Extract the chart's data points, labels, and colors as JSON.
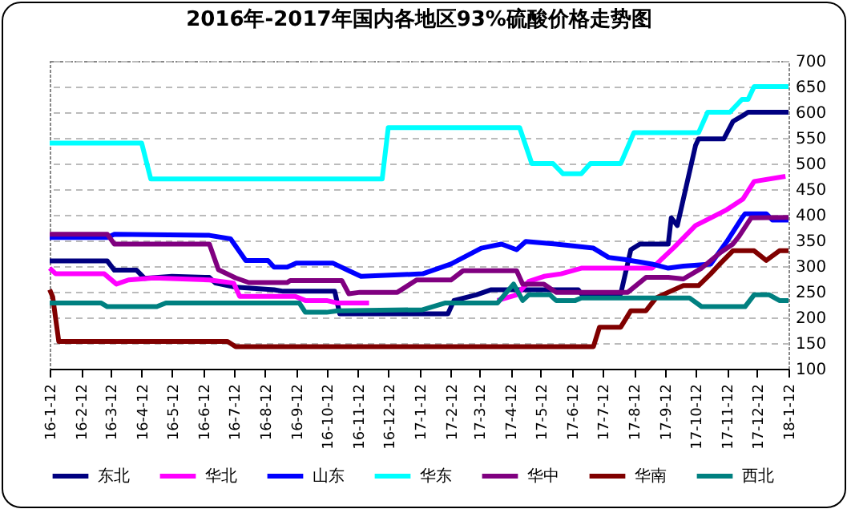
{
  "chart_data": {
    "type": "line",
    "title": "2016年-2017年国内各地区93%硫酸价格走势图",
    "xlim": [
      "2016-01-12",
      "2018-01-12"
    ],
    "xticks": [
      {
        "value": "2016-01-12",
        "label": "16-1-12"
      },
      {
        "value": "2016-02-12",
        "label": "16-2-12"
      },
      {
        "value": "2016-03-12",
        "label": "16-3-12"
      },
      {
        "value": "2016-04-12",
        "label": "16-4-12"
      },
      {
        "value": "2016-05-12",
        "label": "16-5-12"
      },
      {
        "value": "2016-06-12",
        "label": "16-6-12"
      },
      {
        "value": "2016-07-12",
        "label": "16-7-12"
      },
      {
        "value": "2016-08-12",
        "label": "16-8-12"
      },
      {
        "value": "2016-09-12",
        "label": "16-9-12"
      },
      {
        "value": "2016-10-12",
        "label": "16-10-12"
      },
      {
        "value": "2016-11-12",
        "label": "16-11-12"
      },
      {
        "value": "2016-12-12",
        "label": "16-12-12"
      },
      {
        "value": "2017-01-12",
        "label": "17-1-12"
      },
      {
        "value": "2017-02-12",
        "label": "17-2-12"
      },
      {
        "value": "2017-03-12",
        "label": "17-3-12"
      },
      {
        "value": "2017-04-12",
        "label": "17-4-12"
      },
      {
        "value": "2017-05-12",
        "label": "17-5-12"
      },
      {
        "value": "2017-06-12",
        "label": "17-6-12"
      },
      {
        "value": "2017-07-12",
        "label": "17-7-12"
      },
      {
        "value": "2017-08-12",
        "label": "17-8-12"
      },
      {
        "value": "2017-09-12",
        "label": "17-9-12"
      },
      {
        "value": "2017-10-12",
        "label": "17-10-12"
      },
      {
        "value": "2017-11-12",
        "label": "17-11-12"
      },
      {
        "value": "2017-12-12",
        "label": "17-12-12"
      },
      {
        "value": "2018-01-12",
        "label": "18-1-12"
      }
    ],
    "ylim": [
      100,
      700
    ],
    "yticks": [
      100,
      150,
      200,
      250,
      300,
      350,
      400,
      450,
      500,
      550,
      600,
      650,
      700
    ],
    "grid": "y",
    "legend": "bottom",
    "series": [
      {
        "name": "东北",
        "color": "#000080",
        "x": [
          "2016-01-12",
          "2016-03-09",
          "2016-03-16",
          "2016-04-07",
          "2016-04-15",
          "2016-05-12",
          "2016-06-18",
          "2016-06-24",
          "2016-07-14",
          "2016-08-21",
          "2016-08-30",
          "2016-10-20",
          "2016-10-25",
          "2017-02-09",
          "2017-02-15",
          "2017-03-09",
          "2017-03-24",
          "2017-06-18",
          "2017-06-21",
          "2017-07-30",
          "2017-08-09",
          "2017-08-18",
          "2017-09-15",
          "2017-09-18",
          "2017-09-24",
          "2017-10-12",
          "2017-10-15",
          "2017-11-09",
          "2017-11-18",
          "2017-11-30",
          "2017-12-03",
          "2018-01-12"
        ],
        "values": [
          310,
          310,
          292,
          292,
          276,
          280,
          278,
          267,
          259,
          254,
          251,
          251,
          207,
          207,
          233,
          244,
          254,
          254,
          246,
          246,
          332,
          343,
          343,
          394,
          379,
          535,
          548,
          548,
          582,
          596,
          600,
          600
        ]
      },
      {
        "name": "华北",
        "color": "#ff00ff",
        "x": [
          "2016-01-12",
          "2016-01-18",
          "2016-03-06",
          "2016-03-18",
          "2016-03-30",
          "2016-04-24",
          "2016-06-18",
          "2016-07-12",
          "2016-07-18",
          "2016-09-11",
          "2016-09-21",
          "2016-10-12",
          "2016-10-23",
          "2016-11-23",
          "2017-01-12",
          "2017-03-30",
          "2017-04-18",
          "2017-04-30",
          "2017-05-15",
          "2017-06-01",
          "2017-06-21",
          "2017-08-30",
          "2017-09-21",
          "2017-10-12",
          "2017-10-27",
          "2017-11-12",
          "2017-11-28",
          "2017-12-09",
          "2018-01-09"
        ],
        "values": [
          296,
          285,
          285,
          265,
          273,
          277,
          273,
          267,
          241,
          241,
          233,
          233,
          228,
          228,
          null,
          233,
          244,
          270,
          280,
          285,
          296,
          296,
          337,
          379,
          394,
          410,
          431,
          465,
          475
        ]
      },
      {
        "name": "山东",
        "color": "#0000ff",
        "x": [
          "2016-01-12",
          "2016-03-09",
          "2016-03-16",
          "2016-06-18",
          "2016-07-09",
          "2016-07-24",
          "2016-08-15",
          "2016-08-21",
          "2016-09-03",
          "2016-09-12",
          "2016-10-18",
          "2016-11-03",
          "2016-11-15",
          "2017-01-15",
          "2017-02-12",
          "2017-03-14",
          "2017-04-03",
          "2017-04-18",
          "2017-04-27",
          "2017-05-27",
          "2017-07-03",
          "2017-07-18",
          "2017-08-03",
          "2017-08-30",
          "2017-09-15",
          "2017-09-30",
          "2017-10-27",
          "2017-11-12",
          "2017-11-27",
          "2017-11-30",
          "2017-12-21",
          "2017-12-27",
          "2018-01-12"
        ],
        "values": [
          356,
          356,
          362,
          360,
          353,
          311,
          311,
          298,
          298,
          306,
          306,
          291,
          280,
          285,
          304,
          335,
          343,
          332,
          348,
          343,
          335,
          317,
          313,
          304,
          296,
          300,
          304,
          348,
          394,
          402,
          402,
          390,
          390
        ]
      },
      {
        "name": "华东",
        "color": "#00ffff",
        "x": [
          "2016-01-12",
          "2016-04-12",
          "2016-04-21",
          "2016-12-06",
          "2016-12-12",
          "2017-04-21",
          "2017-05-03",
          "2017-05-24",
          "2017-06-03",
          "2017-06-21",
          "2017-06-30",
          "2017-07-30",
          "2017-08-12",
          "2017-10-15",
          "2017-10-24",
          "2017-11-15",
          "2017-11-27",
          "2017-12-03",
          "2017-12-09",
          "2018-01-12"
        ],
        "values": [
          540,
          540,
          470,
          470,
          570,
          570,
          500,
          500,
          480,
          480,
          500,
          500,
          560,
          560,
          600,
          600,
          625,
          625,
          650,
          650
        ]
      },
      {
        "name": "华中",
        "color": "#800080",
        "x": [
          "2016-01-12",
          "2016-03-09",
          "2016-03-16",
          "2016-06-18",
          "2016-06-27",
          "2016-07-14",
          "2016-07-27",
          "2016-09-03",
          "2016-09-06",
          "2016-10-27",
          "2016-11-03",
          "2016-11-14",
          "2016-12-21",
          "2017-01-09",
          "2017-02-12",
          "2017-02-24",
          "2017-04-18",
          "2017-04-24",
          "2017-05-15",
          "2017-05-27",
          "2017-08-06",
          "2017-08-24",
          "2017-09-15",
          "2017-09-30",
          "2017-10-18",
          "2017-11-06",
          "2017-11-18",
          "2017-11-24",
          "2017-12-06",
          "2018-01-12"
        ],
        "values": [
          362,
          362,
          343,
          343,
          293,
          277,
          268,
          268,
          272,
          272,
          246,
          249,
          249,
          273,
          273,
          291,
          291,
          265,
          265,
          249,
          249,
          278,
          278,
          275,
          296,
          327,
          343,
          358,
          394,
          395
        ]
      },
      {
        "name": "华南",
        "color": "#800000",
        "x": [
          "2016-01-12",
          "2016-01-15",
          "2016-01-21",
          "2016-07-06",
          "2016-07-14",
          "2017-07-03",
          "2017-07-09",
          "2017-07-30",
          "2017-08-09",
          "2017-08-24",
          "2017-09-03",
          "2017-09-15",
          "2017-09-30",
          "2017-10-15",
          "2017-10-27",
          "2017-11-06",
          "2017-11-18",
          "2017-12-09",
          "2017-12-21",
          "2018-01-03",
          "2018-01-12"
        ],
        "values": [
          254,
          240,
          153,
          153,
          143,
          143,
          181,
          181,
          213,
          213,
          238,
          249,
          262,
          262,
          285,
          306,
          330,
          330,
          311,
          330,
          330
        ]
      },
      {
        "name": "西北",
        "color": "#008080",
        "x": [
          "2016-01-12",
          "2016-03-03",
          "2016-03-09",
          "2016-04-27",
          "2016-05-06",
          "2016-09-15",
          "2016-09-21",
          "2016-10-12",
          "2016-10-23",
          "2017-01-15",
          "2017-02-06",
          "2017-03-30",
          "2017-04-15",
          "2017-04-24",
          "2017-04-30",
          "2017-05-21",
          "2017-05-27",
          "2017-06-15",
          "2017-06-21",
          "2017-10-06",
          "2017-10-18",
          "2017-11-30",
          "2017-12-09",
          "2017-12-24",
          "2018-01-03",
          "2018-01-12"
        ],
        "values": [
          228,
          228,
          221,
          221,
          228,
          228,
          210,
          210,
          213,
          215,
          228,
          228,
          265,
          233,
          244,
          244,
          233,
          233,
          238,
          238,
          221,
          221,
          244,
          244,
          233,
          233
        ]
      }
    ]
  }
}
